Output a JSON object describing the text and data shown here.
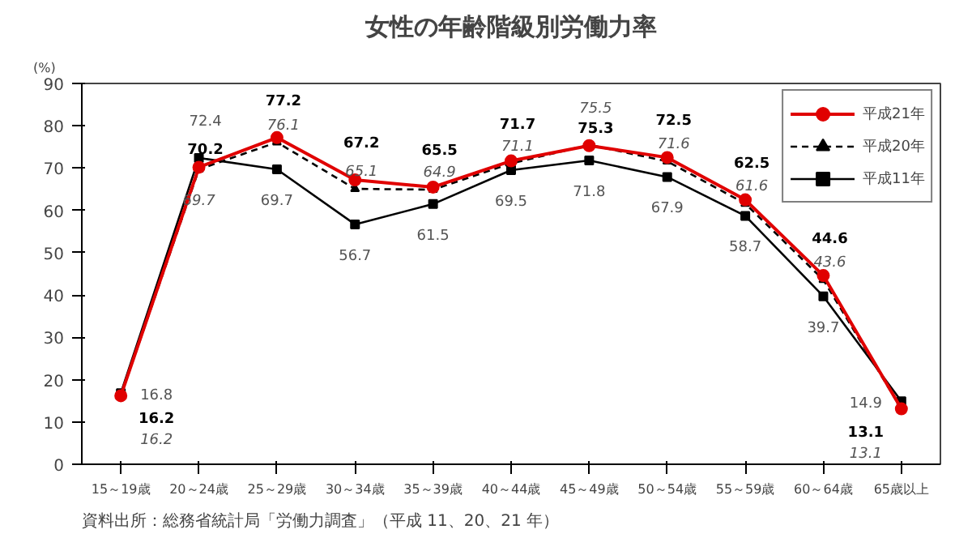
{
  "chart_data": {
    "type": "line",
    "title": "女性の年齢階級別労働力率",
    "ylabel": "(%)",
    "categories": [
      "15～19歳",
      "20～24歳",
      "25～29歳",
      "30～34歳",
      "35～39歳",
      "40～44歳",
      "45～49歳",
      "50～54歳",
      "55～59歳",
      "60～64歳",
      "65歳以上"
    ],
    "series": [
      {
        "name": "平成21年",
        "color": "#e00000",
        "marker": "circle",
        "line_style": "solid",
        "values": [
          16.2,
          70.2,
          77.2,
          67.2,
          65.5,
          71.7,
          75.3,
          72.5,
          62.5,
          44.6,
          13.1
        ]
      },
      {
        "name": "平成20年",
        "color": "#000000",
        "marker": "triangle",
        "line_style": "dashed",
        "values": [
          16.2,
          69.7,
          76.1,
          65.1,
          64.9,
          71.1,
          75.5,
          71.6,
          61.6,
          43.6,
          13.1
        ]
      },
      {
        "name": "平成11年",
        "color": "#000000",
        "marker": "square",
        "line_style": "solid",
        "values": [
          16.8,
          72.4,
          69.7,
          56.7,
          61.5,
          69.5,
          71.8,
          67.9,
          58.7,
          39.7,
          14.9
        ]
      }
    ],
    "ylim": [
      0,
      90
    ],
    "yticks": [
      0,
      10,
      20,
      30,
      40,
      50,
      60,
      70,
      80,
      90
    ],
    "grid": false,
    "legend": "top right",
    "data_labels": true,
    "annotations": [
      "資料出所：総務省統計局「労働力調査」（平成 11、20、21 年）"
    ]
  }
}
